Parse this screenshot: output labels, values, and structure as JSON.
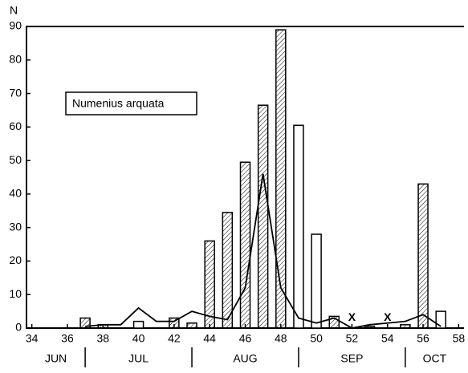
{
  "chart_data": {
    "type": "combo",
    "title": "Numenius arquata",
    "y_label": "N",
    "xlim": [
      33.7,
      58.3
    ],
    "ylim": [
      0,
      90
    ],
    "xticks": [
      34,
      36,
      38,
      40,
      42,
      44,
      46,
      48,
      50,
      52,
      54,
      56,
      58
    ],
    "yticks": [
      0,
      10,
      20,
      30,
      40,
      50,
      60,
      70,
      80,
      90
    ],
    "months": [
      "JUN",
      "JUL",
      "AUG",
      "SEP",
      "OCT"
    ],
    "month_bounds": [
      33.7,
      37,
      43,
      49,
      55,
      58.3
    ],
    "color": "#000000",
    "series": [
      {
        "type": "bar",
        "x": [
          37,
          38,
          40,
          42,
          43,
          44,
          45,
          46,
          47,
          48,
          49,
          50,
          51,
          53,
          55,
          56,
          57
        ],
        "values": [
          3,
          1,
          2,
          3,
          1.5,
          26,
          34.5,
          49.5,
          66.5,
          89,
          60.5,
          28,
          3.5,
          0.5,
          1,
          43,
          5
        ],
        "patterns": [
          "hatched",
          "hatched",
          "open",
          "hatched",
          "hatched",
          "hatched",
          "hatched",
          "hatched",
          "hatched",
          "hatched",
          "open",
          "open",
          "hatched",
          "hatched",
          "hatched",
          "hatched",
          "open"
        ]
      },
      {
        "type": "line",
        "x": [
          37,
          38,
          39,
          40,
          41,
          42,
          43,
          44,
          45,
          46,
          47,
          48,
          49,
          50,
          51,
          52,
          53,
          54,
          55,
          56,
          57
        ],
        "values": [
          0.5,
          1,
          1,
          6,
          2,
          2,
          5,
          3.5,
          2.5,
          12,
          46,
          12,
          3,
          1.5,
          3,
          0,
          1,
          1.5,
          2,
          4,
          0.5
        ]
      }
    ],
    "markers": [
      {
        "x": 52,
        "y": 3,
        "label": "X"
      },
      {
        "x": 54,
        "y": 3,
        "label": "X"
      }
    ]
  }
}
